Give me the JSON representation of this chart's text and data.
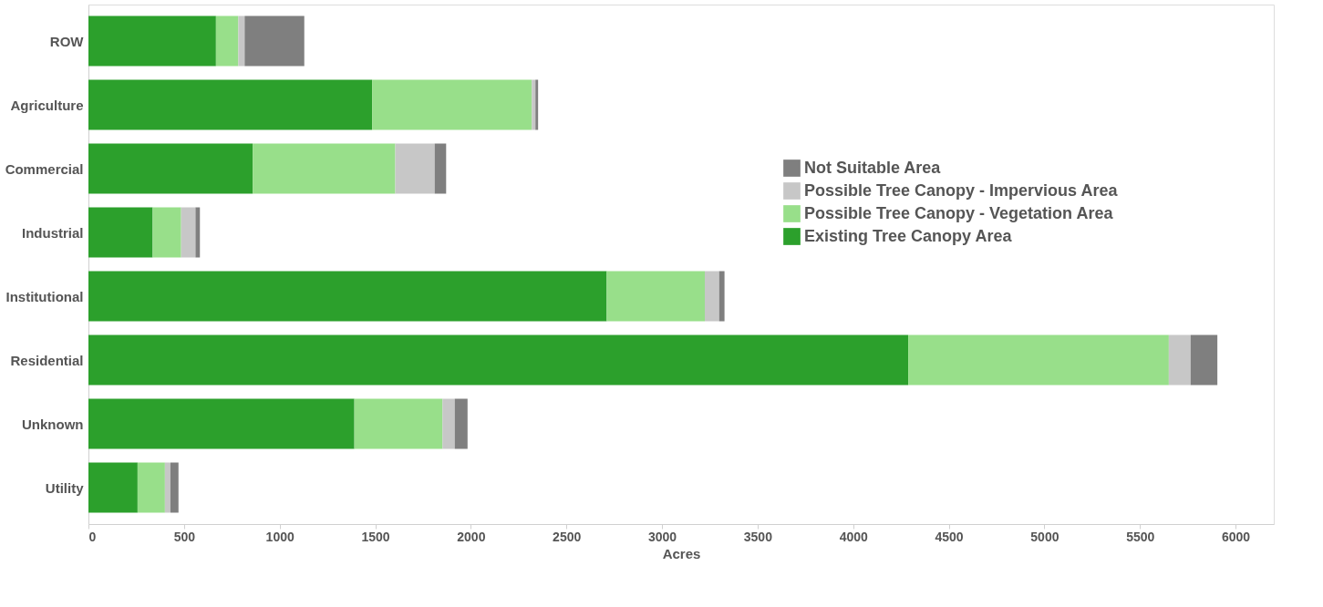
{
  "chart_data": {
    "type": "bar",
    "orientation": "horizontal",
    "stacked": true,
    "xlabel": "Acres",
    "categories": [
      "ROW",
      "Agriculture",
      "Commercial",
      "Industrial",
      "Institutional",
      "Residential",
      "Unknown",
      "Utility"
    ],
    "series": [
      {
        "name": "Existing Tree Canopy Area",
        "color": "#2ca02c",
        "values": [
          667,
          1484,
          859,
          336,
          2711,
          4288,
          1391,
          257
        ]
      },
      {
        "name": "Possible Tree Canopy - Vegetation Area",
        "color": "#98df8a",
        "values": [
          117,
          835,
          746,
          149,
          513,
          1363,
          461,
          143
        ]
      },
      {
        "name": "Possible Tree Canopy - Impervious Area",
        "color": "#c7c7c7",
        "values": [
          33,
          19,
          206,
          75,
          75,
          114,
          64,
          29
        ]
      },
      {
        "name": "Not Suitable Area",
        "color": "#7f7f7f",
        "values": [
          312,
          14,
          60,
          23,
          28,
          140,
          67,
          42
        ]
      }
    ],
    "xlim": [
      0,
      6200
    ],
    "xticks": [
      0,
      500,
      1000,
      1500,
      2000,
      2500,
      3000,
      3500,
      4000,
      4500,
      5000,
      5500,
      6000
    ],
    "grid": false,
    "legend": "top right"
  }
}
